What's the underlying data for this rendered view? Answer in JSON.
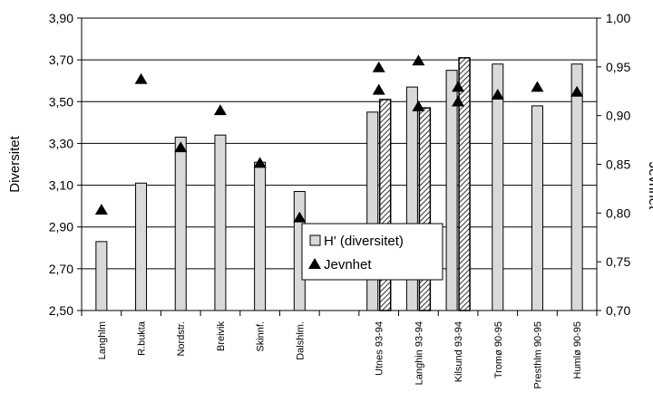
{
  "chart_data": {
    "type": "bar",
    "ylabel": "Diversitet",
    "y2label": "Jevnhet",
    "ylim": [
      2.5,
      3.9
    ],
    "y2lim": [
      0.7,
      1.0
    ],
    "yticks": [
      "2,50",
      "2,70",
      "2,90",
      "3,10",
      "3,30",
      "3,50",
      "3,70",
      "3,90"
    ],
    "y2ticks": [
      "0,70",
      "0,75",
      "0,80",
      "0,85",
      "0,90",
      "0,95",
      "1,00"
    ],
    "grid": true,
    "legend_position": "center",
    "legend": [
      {
        "label": "H' (diversitet)",
        "marker": "bar-grey"
      },
      {
        "label": "Jevnhet",
        "marker": "triangle"
      }
    ],
    "categories": [
      "Langhlm",
      "R.bukta",
      "Nordstr.",
      "Breivik",
      "Skinnf.",
      "Dalshlm.",
      "",
      "Utnes 93-94",
      "Langhin 93-94",
      "Kilsund 93-94",
      "Tromø 90-95",
      "Presthlm 90-95",
      "Humlø 90-95"
    ],
    "series": [
      {
        "name": "H' (diversitet)",
        "kind": "bar",
        "color": "#d9d9d9",
        "values": [
          2.83,
          3.11,
          3.33,
          3.34,
          3.21,
          3.07,
          null,
          3.45,
          3.57,
          3.65,
          3.68,
          3.48,
          3.68
        ]
      },
      {
        "kind": "bar-hatched",
        "color": "#bfbfbf",
        "values": [
          null,
          null,
          null,
          null,
          null,
          null,
          null,
          3.51,
          3.47,
          3.71,
          null,
          null,
          null
        ]
      },
      {
        "name": "Jevnhet",
        "kind": "scatter",
        "marker": "triangle",
        "axis": "y2",
        "points": [
          {
            "cat": 0,
            "value": 0.803
          },
          {
            "cat": 1,
            "value": 0.937
          },
          {
            "cat": 2,
            "value": 0.867
          },
          {
            "cat": 3,
            "value": 0.905
          },
          {
            "cat": 4,
            "value": 0.851
          },
          {
            "cat": 5,
            "value": 0.795
          },
          {
            "cat": 7,
            "value": 0.949
          },
          {
            "cat": 7,
            "value": 0.926
          },
          {
            "cat": 8,
            "value": 0.956
          },
          {
            "cat": 8,
            "value": 0.909
          },
          {
            "cat": 9,
            "value": 0.929
          },
          {
            "cat": 9,
            "value": 0.914
          },
          {
            "cat": 10,
            "value": 0.921
          },
          {
            "cat": 11,
            "value": 0.929
          },
          {
            "cat": 12,
            "value": 0.924
          }
        ]
      }
    ]
  }
}
